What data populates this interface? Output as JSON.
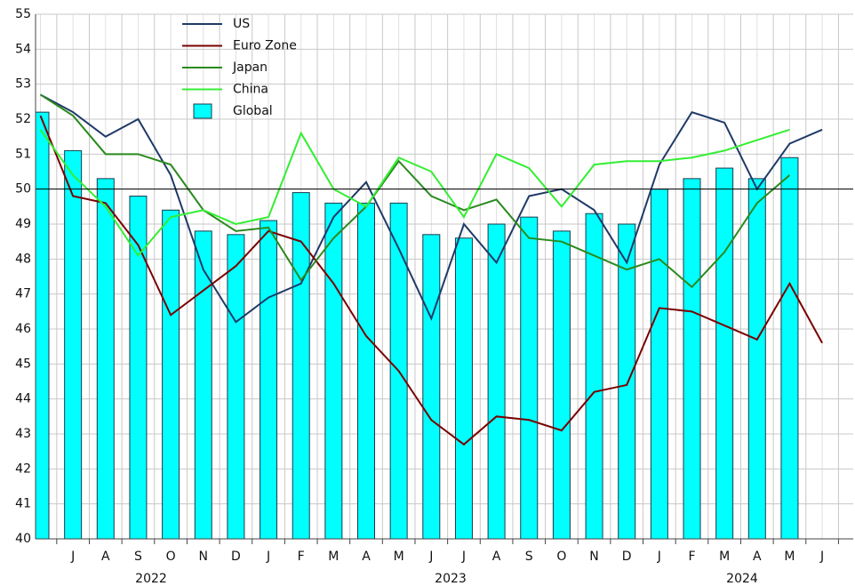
{
  "chart_data": {
    "type": "bar-line",
    "categories": [
      null,
      "J",
      "A",
      "S",
      "O",
      "N",
      "D",
      "J",
      "F",
      "M",
      "A",
      "M",
      "J",
      "J",
      "A",
      "S",
      "O",
      "N",
      "D",
      "J",
      "F",
      "M",
      "A",
      "M",
      "J"
    ],
    "year_labels": [
      "2022",
      "2023",
      "2024"
    ],
    "ylim": [
      40,
      55
    ],
    "yticks": [
      40,
      41,
      42,
      43,
      44,
      45,
      46,
      47,
      48,
      49,
      50,
      51,
      52,
      53,
      54,
      55
    ],
    "grid": true,
    "reference_line": 50,
    "legend": "top-left",
    "series": [
      {
        "name": "US",
        "kind": "line",
        "color": "#1f3a68",
        "values": [
          52.7,
          52.2,
          51.5,
          52.0,
          50.4,
          47.7,
          46.2,
          46.9,
          47.3,
          49.2,
          50.2,
          48.3,
          46.3,
          49.0,
          47.9,
          49.8,
          50.0,
          49.4,
          47.9,
          50.7,
          52.2,
          51.9,
          50.0,
          51.3,
          51.7
        ]
      },
      {
        "name": "Euro Zone",
        "kind": "line",
        "color": "#7a0000",
        "values": [
          52.1,
          49.8,
          49.6,
          48.4,
          46.4,
          47.1,
          47.8,
          48.8,
          48.5,
          47.3,
          45.8,
          44.8,
          43.4,
          42.7,
          43.5,
          43.4,
          43.1,
          44.2,
          44.4,
          46.6,
          46.5,
          46.1,
          45.7,
          47.3,
          45.6
        ]
      },
      {
        "name": "Japan",
        "kind": "line",
        "color": "#2a8a1e",
        "values": [
          52.7,
          52.1,
          51.0,
          51.0,
          50.7,
          49.4,
          48.8,
          48.9,
          47.4,
          48.6,
          49.5,
          50.8,
          49.8,
          49.4,
          49.7,
          48.6,
          48.5,
          48.1,
          47.7,
          48.0,
          47.2,
          48.2,
          49.6,
          50.4,
          null
        ]
      },
      {
        "name": "China",
        "kind": "line",
        "color": "#33ee33",
        "values": [
          51.7,
          50.4,
          49.5,
          48.1,
          49.2,
          49.4,
          49.0,
          49.2,
          51.6,
          50.0,
          49.5,
          50.9,
          50.5,
          49.2,
          51.0,
          50.6,
          49.5,
          50.7,
          50.8,
          50.8,
          50.9,
          51.1,
          51.4,
          51.7,
          null
        ]
      },
      {
        "name": "Global",
        "kind": "bar",
        "color": "#00ffff",
        "values": [
          52.2,
          51.1,
          50.3,
          49.8,
          49.4,
          48.8,
          48.7,
          49.1,
          49.9,
          49.6,
          49.6,
          49.6,
          48.7,
          48.6,
          49.0,
          49.2,
          48.8,
          49.3,
          49.0,
          50.0,
          50.3,
          50.6,
          50.3,
          50.9,
          null
        ]
      }
    ]
  }
}
